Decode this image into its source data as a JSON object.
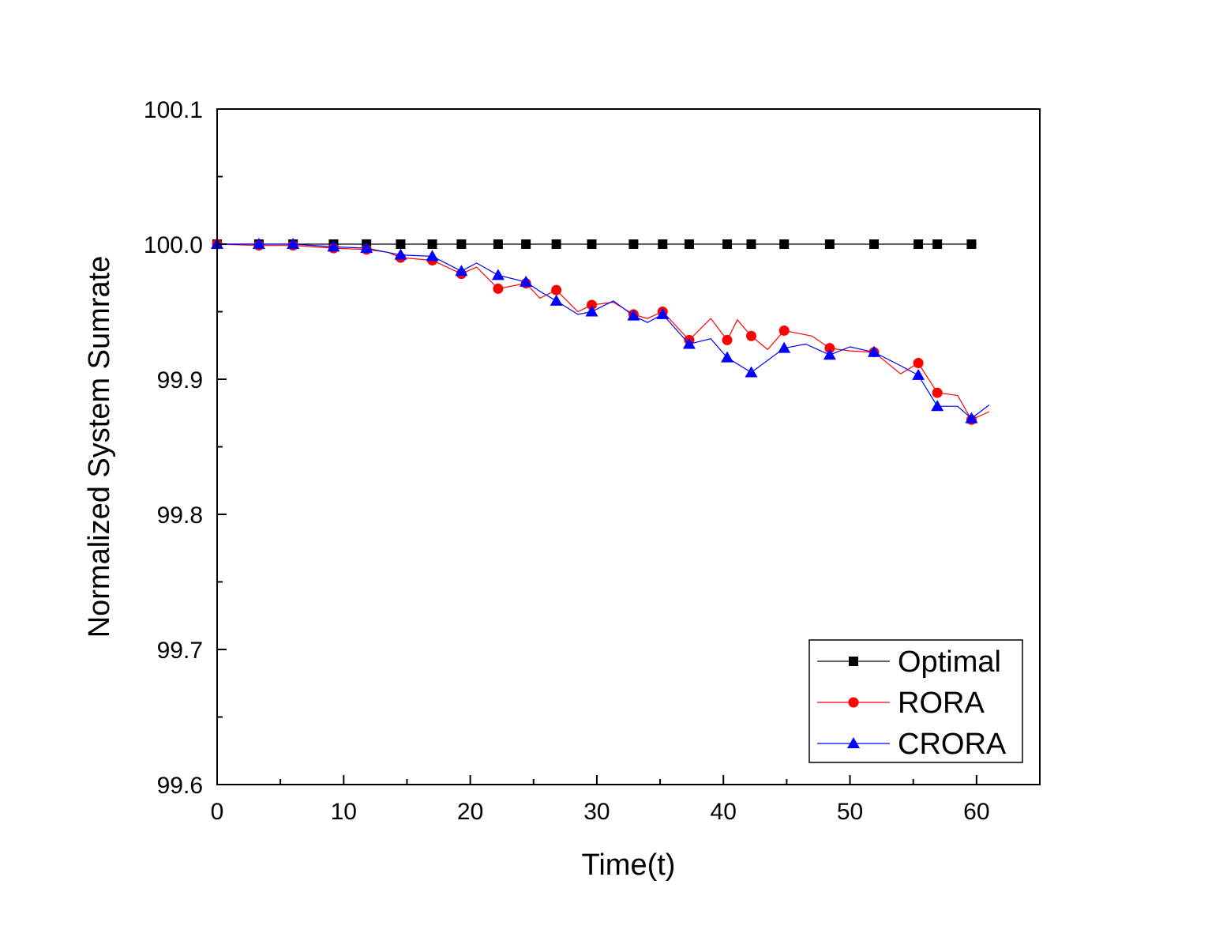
{
  "chart_data": {
    "type": "line",
    "xlabel": "Time(t)",
    "ylabel": "Normalized System Sumrate",
    "xlim": [
      0,
      65
    ],
    "ylim": [
      99.6,
      100.1
    ],
    "xticks": [
      0,
      10,
      20,
      30,
      40,
      50,
      60
    ],
    "xtick_labels": [
      "0",
      "10",
      "20",
      "30",
      "40",
      "50",
      "60"
    ],
    "yticks": [
      99.6,
      99.7,
      99.8,
      99.9,
      100.0,
      100.1
    ],
    "ytick_labels": [
      "99.6",
      "99.7",
      "99.8",
      "99.9",
      "100.0",
      "100.1"
    ],
    "grid": false,
    "legend_position": "bottom-right",
    "series": [
      {
        "name": "Optimal",
        "color": "#000000",
        "marker": "square",
        "line": [
          [
            0,
            100.0
          ],
          [
            60,
            100.0
          ]
        ],
        "markers": [
          [
            0,
            100.0
          ],
          [
            3.3,
            100.0
          ],
          [
            6,
            100.0
          ],
          [
            9.2,
            100.0
          ],
          [
            11.8,
            100.0
          ],
          [
            14.5,
            100.0
          ],
          [
            17,
            100.0
          ],
          [
            19.3,
            100.0
          ],
          [
            22.2,
            100.0
          ],
          [
            24.4,
            100.0
          ],
          [
            26.8,
            100.0
          ],
          [
            29.6,
            100.0
          ],
          [
            32.9,
            100.0
          ],
          [
            35.2,
            100.0
          ],
          [
            37.3,
            100.0
          ],
          [
            40.3,
            100.0
          ],
          [
            42.2,
            100.0
          ],
          [
            44.8,
            100.0
          ],
          [
            48.4,
            100.0
          ],
          [
            51.9,
            100.0
          ],
          [
            55.4,
            100.0
          ],
          [
            56.9,
            100.0
          ],
          [
            59.6,
            100.0
          ]
        ]
      },
      {
        "name": "RORA",
        "color": "#ff0000",
        "marker": "circle",
        "line": [
          [
            0,
            100.0
          ],
          [
            3.3,
            99.999
          ],
          [
            6,
            99.999
          ],
          [
            9.2,
            99.997
          ],
          [
            11.8,
            99.996
          ],
          [
            13.5,
            99.994
          ],
          [
            14.5,
            99.99
          ],
          [
            17,
            99.988
          ],
          [
            19.3,
            99.978
          ],
          [
            20.5,
            99.983
          ],
          [
            22.2,
            99.967
          ],
          [
            24.4,
            99.971
          ],
          [
            25.5,
            99.96
          ],
          [
            26.8,
            99.966
          ],
          [
            28.5,
            99.95
          ],
          [
            29.6,
            99.955
          ],
          [
            31.3,
            99.957
          ],
          [
            32.9,
            99.948
          ],
          [
            34,
            99.945
          ],
          [
            35.2,
            99.95
          ],
          [
            37.3,
            99.929
          ],
          [
            39,
            99.945
          ],
          [
            40.3,
            99.929
          ],
          [
            41.1,
            99.944
          ],
          [
            42.2,
            99.932
          ],
          [
            43.5,
            99.922
          ],
          [
            44.8,
            99.936
          ],
          [
            47,
            99.932
          ],
          [
            48.4,
            99.923
          ],
          [
            50,
            99.921
          ],
          [
            51.9,
            99.92
          ],
          [
            54,
            99.904
          ],
          [
            55.4,
            99.912
          ],
          [
            56.9,
            99.89
          ],
          [
            58.5,
            99.888
          ],
          [
            59.6,
            99.87
          ],
          [
            61,
            99.876
          ]
        ],
        "markers": [
          [
            0,
            100.0
          ],
          [
            3.3,
            99.999
          ],
          [
            6,
            99.999
          ],
          [
            9.2,
            99.997
          ],
          [
            11.8,
            99.996
          ],
          [
            14.5,
            99.99
          ],
          [
            17,
            99.988
          ],
          [
            19.3,
            99.978
          ],
          [
            22.2,
            99.967
          ],
          [
            24.4,
            99.971
          ],
          [
            26.8,
            99.966
          ],
          [
            29.6,
            99.955
          ],
          [
            32.9,
            99.948
          ],
          [
            35.2,
            99.95
          ],
          [
            37.3,
            99.929
          ],
          [
            40.3,
            99.929
          ],
          [
            42.2,
            99.932
          ],
          [
            44.8,
            99.936
          ],
          [
            48.4,
            99.923
          ],
          [
            51.9,
            99.92
          ],
          [
            55.4,
            99.912
          ],
          [
            56.9,
            99.89
          ],
          [
            59.6,
            99.87
          ]
        ]
      },
      {
        "name": "CRORA",
        "color": "#0000ff",
        "marker": "triangle",
        "line": [
          [
            0,
            100.0
          ],
          [
            3.3,
            100.0
          ],
          [
            6,
            100.0
          ],
          [
            9.2,
            99.998
          ],
          [
            11.8,
            99.997
          ],
          [
            14.5,
            99.992
          ],
          [
            17,
            99.991
          ],
          [
            19.3,
            99.98
          ],
          [
            20.5,
            99.986
          ],
          [
            22.2,
            99.977
          ],
          [
            24.4,
            99.972
          ],
          [
            25.5,
            99.965
          ],
          [
            26.8,
            99.958
          ],
          [
            28.5,
            99.948
          ],
          [
            29.6,
            99.95
          ],
          [
            31.3,
            99.958
          ],
          [
            32.9,
            99.947
          ],
          [
            34,
            99.942
          ],
          [
            35.2,
            99.948
          ],
          [
            37.3,
            99.926
          ],
          [
            39,
            99.93
          ],
          [
            40.3,
            99.916
          ],
          [
            42.2,
            99.905
          ],
          [
            44.8,
            99.923
          ],
          [
            46.5,
            99.926
          ],
          [
            48.4,
            99.918
          ],
          [
            50,
            99.924
          ],
          [
            51.9,
            99.92
          ],
          [
            54,
            99.91
          ],
          [
            55.4,
            99.903
          ],
          [
            56.9,
            99.88
          ],
          [
            58.5,
            99.88
          ],
          [
            59.6,
            99.871
          ],
          [
            61,
            99.881
          ]
        ],
        "markers": [
          [
            0,
            100.0
          ],
          [
            3.3,
            100.0
          ],
          [
            6,
            100.0
          ],
          [
            9.2,
            99.998
          ],
          [
            11.8,
            99.997
          ],
          [
            14.5,
            99.992
          ],
          [
            17,
            99.991
          ],
          [
            19.3,
            99.98
          ],
          [
            22.2,
            99.977
          ],
          [
            24.4,
            99.972
          ],
          [
            26.8,
            99.958
          ],
          [
            29.6,
            99.95
          ],
          [
            32.9,
            99.947
          ],
          [
            35.2,
            99.948
          ],
          [
            37.3,
            99.926
          ],
          [
            40.3,
            99.916
          ],
          [
            42.2,
            99.905
          ],
          [
            44.8,
            99.923
          ],
          [
            48.4,
            99.918
          ],
          [
            51.9,
            99.92
          ],
          [
            55.4,
            99.903
          ],
          [
            56.9,
            99.88
          ],
          [
            59.6,
            99.871
          ]
        ]
      }
    ]
  }
}
